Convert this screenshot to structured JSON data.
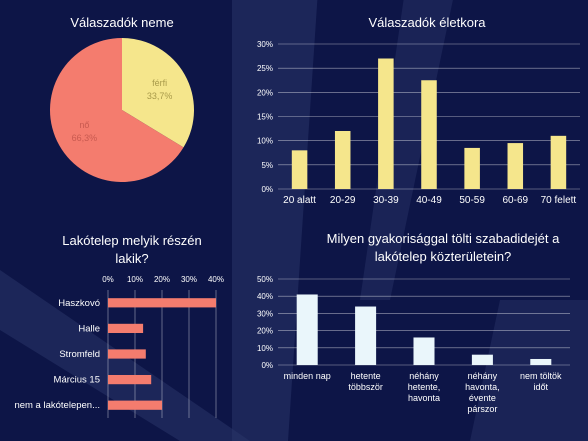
{
  "colors": {
    "background": "#0d1547",
    "decor": "#2a3568",
    "gridline": "#ffffff",
    "pie_no": "#f47c6e",
    "pie_ferfi": "#f5e68c",
    "bar_age": "#f5e68c",
    "bar_part": "#f47c6e",
    "bar_freq": "#eaf6fb",
    "text": "#ffffff"
  },
  "chart_data": [
    {
      "type": "pie",
      "title": "Válaszadók neme",
      "slices": [
        {
          "label": "férfi",
          "value": 33.7,
          "value_label": "33,7%",
          "color": "#f5e68c"
        },
        {
          "label": "nő",
          "value": 66.3,
          "value_label": "66,3%",
          "color": "#f47c6e"
        }
      ]
    },
    {
      "type": "bar",
      "title": "Válaszadók életkora",
      "categories": [
        "20 alatt",
        "20-29",
        "30-39",
        "40-49",
        "50-59",
        "60-69",
        "70 felett"
      ],
      "values": [
        8,
        12,
        27,
        22.5,
        8.5,
        9.5,
        11
      ],
      "ylim": [
        0,
        30
      ],
      "yticks": [
        "0%",
        "5%",
        "10%",
        "15%",
        "20%",
        "25%",
        "30%"
      ],
      "grid": true,
      "legend": "none"
    },
    {
      "type": "bar",
      "orientation": "horizontal",
      "title": "Lakótelep melyik részén lakik?",
      "categories": [
        "Haszkovó",
        "Halle",
        "Stromfeld",
        "Március 15",
        "nem a lakótelepen..."
      ],
      "values": [
        40,
        13,
        14,
        16,
        20
      ],
      "xlim": [
        0,
        40
      ],
      "xticks": [
        "0%",
        "10%",
        "20%",
        "30%",
        "40%"
      ],
      "grid": true,
      "legend": "none"
    },
    {
      "type": "bar",
      "title": "Milyen gyakorisággal tölti szabadidejét a lakótelep közterületein?",
      "categories": [
        "minden nap",
        "hetente többször",
        "néhány hetente, havonta",
        "néhány havonta, évente párszor",
        "nem töltök időt"
      ],
      "values": [
        41,
        34,
        16,
        6,
        3.5
      ],
      "ylim": [
        0,
        50
      ],
      "yticks": [
        "0%",
        "10%",
        "20%",
        "30%",
        "40%",
        "50%"
      ],
      "grid": true,
      "legend": "none"
    }
  ]
}
